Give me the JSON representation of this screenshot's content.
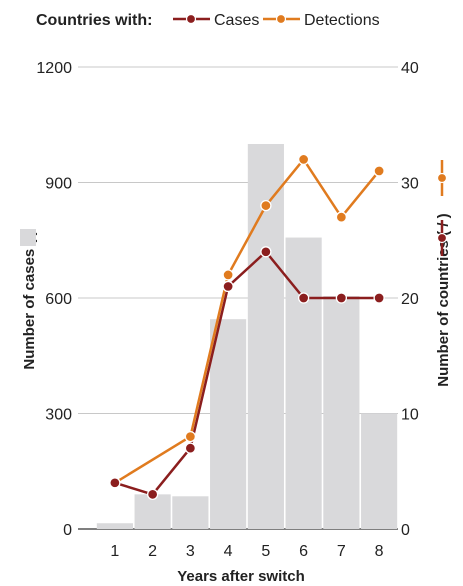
{
  "chart_data": {
    "type": "bar+line",
    "legend": {
      "title": "Countries with:",
      "entries": [
        {
          "name": "Cases",
          "color": "#8b1e1e"
        },
        {
          "name": "Detections",
          "color": "#e07b1f"
        }
      ],
      "placement": "top-left"
    },
    "categories": [
      "1",
      "2",
      "3",
      "4",
      "5",
      "6",
      "7",
      "8"
    ],
    "bars": {
      "values": [
        15,
        90,
        85,
        545,
        1000,
        757,
        605,
        300
      ],
      "color": "#d9d9db"
    },
    "series": [
      {
        "name": "Cases",
        "values": [
          4,
          3,
          7,
          21,
          24,
          20,
          20,
          20
        ],
        "color": "#8b1e1e"
      },
      {
        "name": "Detections",
        "values": [
          4,
          null,
          8,
          22,
          28,
          32,
          27,
          31
        ],
        "color": "#e07b1f"
      }
    ],
    "xlabel": "Years after switch",
    "ylabel_left": "Number of cases (",
    "ylabel_left_close": ")",
    "ylabel_right": "Number of countries (",
    "ylabel_right_sep": "/",
    "ylabel_right_close": ")",
    "ylim_left": [
      0,
      1200
    ],
    "yticks_left": [
      "0",
      "300",
      "600",
      "900",
      "1200"
    ],
    "ylim_right": [
      0,
      40
    ],
    "yticks_right": [
      "0",
      "10",
      "20",
      "30",
      "40"
    ],
    "grid": true
  }
}
